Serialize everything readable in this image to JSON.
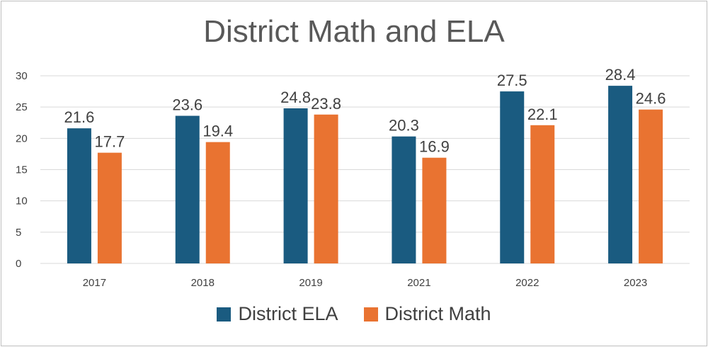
{
  "chart_data": {
    "type": "bar",
    "title": "District Math and ELA",
    "categories": [
      "2017",
      "2018",
      "2019",
      "2021",
      "2022",
      "2023"
    ],
    "series": [
      {
        "name": "District ELA",
        "color": "#1a5b80",
        "values": [
          21.6,
          23.6,
          24.8,
          20.3,
          27.5,
          28.4
        ]
      },
      {
        "name": "District Math",
        "color": "#e97331",
        "values": [
          17.7,
          19.4,
          23.8,
          16.9,
          22.1,
          24.6
        ]
      }
    ],
    "ylim": [
      0,
      30
    ],
    "yticks": [
      0,
      5,
      10,
      15,
      20,
      25,
      30
    ],
    "grid": true,
    "legend_position": "bottom",
    "xlabel": "",
    "ylabel": ""
  }
}
